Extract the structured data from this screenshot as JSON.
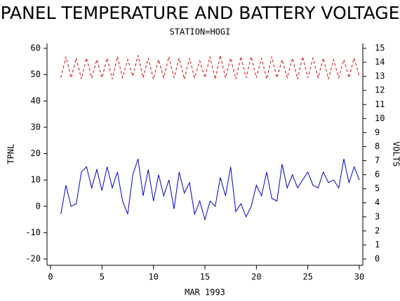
{
  "chart_data": {
    "type": "line",
    "title": "PANEL TEMPERATURE AND BATTERY VOLTAGE",
    "subtitle": "STATION=HOGI",
    "x_label": "MAR 1993",
    "y_label": "TPNL",
    "y2_label": "VOLTS",
    "x": [
      1,
      1.5,
      2,
      2.5,
      3,
      3.5,
      4,
      4.5,
      5,
      5.5,
      6,
      6.5,
      7,
      7.5,
      8,
      8.5,
      9,
      9.5,
      10,
      10.5,
      11,
      11.5,
      12,
      12.5,
      13,
      13.5,
      14,
      14.5,
      15,
      15.5,
      16,
      16.5,
      17,
      17.5,
      18,
      18.5,
      19,
      19.5,
      20,
      20.5,
      21,
      21.5,
      22,
      22.5,
      23,
      23.5,
      24,
      24.5,
      25,
      25.5,
      26,
      26.5,
      27,
      27.5,
      28,
      28.5,
      29,
      29.5,
      30
    ],
    "series": [
      {
        "color": "#0000cc",
        "values": [
          -3,
          8,
          0,
          1,
          13,
          15,
          7,
          14,
          6,
          15,
          7,
          13,
          2,
          -3,
          12,
          18,
          4,
          14,
          2,
          12,
          4,
          10,
          -1,
          13,
          5,
          9,
          -3,
          2,
          -5,
          2,
          0,
          11,
          4,
          15,
          -2,
          1,
          -4,
          0,
          8,
          4,
          13,
          3,
          2,
          16,
          7,
          12,
          7,
          10,
          13,
          8,
          7,
          13,
          9,
          10,
          7,
          18,
          9,
          15,
          10
        ]
      },
      {
        "color": "#dd0000",
        "axis": "y2",
        "dashed": true,
        "values": [
          12.9,
          14.4,
          12.9,
          14.3,
          12.8,
          14.3,
          12.9,
          14.2,
          12.9,
          14.3,
          12.8,
          14.4,
          12.9,
          14.2,
          13.0,
          14.5,
          12.9,
          14.3,
          12.8,
          14.2,
          12.9,
          14.4,
          12.9,
          14.3,
          12.8,
          14.3,
          12.9,
          14.1,
          12.9,
          14.4,
          12.8,
          14.5,
          12.9,
          14.3,
          12.8,
          14.4,
          12.9,
          14.4,
          12.9,
          14.3,
          12.8,
          14.4,
          12.9,
          14.2,
          12.9,
          14.3,
          12.8,
          14.4,
          12.9,
          14.3,
          12.9,
          14.3,
          12.8,
          14.2,
          12.9,
          14.2,
          12.9,
          14.3,
          13.0
        ]
      }
    ],
    "xlim": [
      0,
      30
    ],
    "xticks": [
      0,
      5,
      10,
      15,
      20,
      25,
      30
    ],
    "ylim": [
      -20,
      60
    ],
    "yticks": [
      -20,
      -10,
      0,
      10,
      20,
      30,
      40,
      50,
      60
    ],
    "y2lim": [
      0,
      15
    ],
    "y2ticks": [
      0,
      1,
      2,
      3,
      4,
      5,
      6,
      7,
      8,
      9,
      10,
      11,
      12,
      13,
      14,
      15
    ]
  }
}
